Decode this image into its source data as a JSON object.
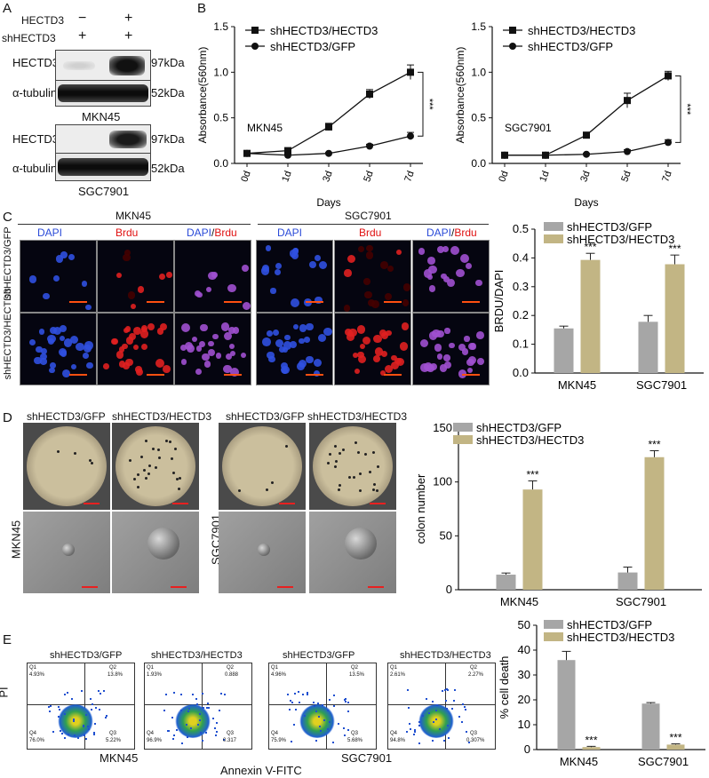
{
  "panelA": {
    "label": "A",
    "rows": [
      "HECTD3",
      "shHECTD3"
    ],
    "signs": [
      [
        "−",
        "+"
      ],
      [
        "+",
        "+"
      ]
    ],
    "blots": [
      {
        "protein": "HECTD3",
        "kda": "97kDa"
      },
      {
        "protein": "α-tubulin",
        "kda": "52kDa"
      },
      {
        "protein": "HECTD3",
        "kda": "97kDa"
      },
      {
        "protein": "α-tubulin",
        "kda": "52kDa"
      }
    ],
    "cell_lines": [
      "MKN45",
      "SGC7901"
    ]
  },
  "panelB": {
    "label": "B"
  },
  "panelC": {
    "label": "C",
    "groups": [
      "MKN45",
      "SGC7901"
    ],
    "channels": [
      "DAPI",
      "Brdu",
      "DAPI",
      "/",
      "Brdu"
    ],
    "rows": [
      "shHECTD3/GFP",
      "shHECTD3/HECTD3"
    ]
  },
  "panelD": {
    "label": "D",
    "cols": [
      "shHECTD3/GFP",
      "shHECTD3/HECTD3",
      "shHECTD3/GFP",
      "shHECTD3/HECTD3"
    ],
    "rows": [
      "MKN45",
      "SGC7901"
    ]
  },
  "panelE": {
    "label": "E",
    "cols": [
      "shHECTD3/GFP",
      "shHECTD3/HECTD3",
      "shHECTD3/GFP",
      "shHECTD3/HECTD3"
    ],
    "quadrants": [
      {
        "q1": "4.93%",
        "q2": "13.8%",
        "q3": "5.22%",
        "q4": "76.0%"
      },
      {
        "q1": "1.93%",
        "q2": "0.888",
        "q3": "0.317",
        "q4": "96.9%"
      },
      {
        "q1": "4.96%",
        "q2": "13.5%",
        "q3": "5.68%",
        "q4": "75.9%"
      },
      {
        "q1": "2.61%",
        "q2": "2.27%",
        "q3": "0.307%",
        "q4": "94.8%"
      }
    ],
    "qnames": [
      "Q1",
      "Q2",
      "Q3",
      "Q4"
    ],
    "ylabel": "PI",
    "xlabel": "Annexin V-FITC",
    "cell_lines": [
      "MKN45",
      "SGC7901"
    ]
  },
  "colors": {
    "gfp": "#a6a6a6",
    "hectd3": "#c2b584",
    "line": "#111111"
  },
  "chart_data": [
    {
      "id": "B1",
      "type": "line",
      "x": [
        "0d",
        "1d",
        "3d",
        "5d",
        "7d"
      ],
      "series": [
        {
          "name": "shHECTD3/HECTD3",
          "values": [
            0.11,
            0.14,
            0.4,
            0.76,
            1.0
          ],
          "err": [
            0.02,
            0.02,
            0.04,
            0.05,
            0.08
          ],
          "marker": "square"
        },
        {
          "name": "shHECTD3/GFP",
          "values": [
            0.11,
            0.09,
            0.11,
            0.19,
            0.3
          ],
          "err": [
            0.01,
            0.01,
            0.01,
            0.02,
            0.04
          ],
          "marker": "circle"
        }
      ],
      "ylabel": "Absorbance(560nm)",
      "xlabel": "Days",
      "ylim": [
        0,
        1.5
      ],
      "yticks": [
        "0.0",
        "0.5",
        "1.0",
        "1.5"
      ],
      "annotation": "MKN45",
      "sig": "***"
    },
    {
      "id": "B2",
      "type": "line",
      "x": [
        "0d",
        "1d",
        "3d",
        "5d",
        "7d"
      ],
      "series": [
        {
          "name": "shHECTD3/HECTD3",
          "values": [
            0.09,
            0.09,
            0.31,
            0.69,
            0.96
          ],
          "err": [
            0.01,
            0.01,
            0.03,
            0.08,
            0.05
          ],
          "marker": "square"
        },
        {
          "name": "shHECTD3/GFP",
          "values": [
            0.09,
            0.09,
            0.1,
            0.13,
            0.23
          ],
          "err": [
            0.01,
            0.01,
            0.01,
            0.02,
            0.03
          ],
          "marker": "circle"
        }
      ],
      "ylabel": "Absorbance(560nm)",
      "xlabel": "Days",
      "ylim": [
        0,
        1.5
      ],
      "yticks": [
        "0.0",
        "0.5",
        "1.0",
        "1.5"
      ],
      "annotation": "SGC7901",
      "sig": "***"
    },
    {
      "id": "C",
      "type": "bar",
      "categories": [
        "MKN45",
        "SGC7901"
      ],
      "series": [
        {
          "name": "shHECTD3/GFP",
          "values": [
            0.155,
            0.178
          ],
          "err": [
            0.008,
            0.022
          ]
        },
        {
          "name": "shHECTD3/HECTD3",
          "values": [
            0.393,
            0.378
          ],
          "err": [
            0.023,
            0.032
          ]
        }
      ],
      "ylabel": "BRDU/DAPI",
      "ylim": [
        0,
        0.5
      ],
      "yticks": [
        "0.0",
        "0.1",
        "0.2",
        "0.3",
        "0.4",
        "0.5"
      ],
      "sig": "***"
    },
    {
      "id": "D",
      "type": "bar",
      "categories": [
        "MKN45",
        "SGC7901"
      ],
      "series": [
        {
          "name": "shHECTD3/GFP",
          "values": [
            14,
            16
          ],
          "err": [
            1.5,
            5
          ]
        },
        {
          "name": "shHECTD3/HECTD3",
          "values": [
            93,
            123
          ],
          "err": [
            8,
            6
          ]
        }
      ],
      "ylabel": "colon number",
      "ylim": [
        0,
        150
      ],
      "yticks": [
        "0",
        "50",
        "100",
        "150"
      ],
      "sig": "***"
    },
    {
      "id": "E",
      "type": "bar",
      "categories": [
        "MKN45",
        "SGC7901"
      ],
      "series": [
        {
          "name": "shHECTD3/GFP",
          "values": [
            36,
            18.5
          ],
          "err": [
            3.5,
            0.4
          ]
        },
        {
          "name": "shHECTD3/HECTD3",
          "values": [
            1.0,
            2.0
          ],
          "err": [
            0.3,
            0.3
          ]
        }
      ],
      "ylabel": "% cell death",
      "ylim": [
        0,
        50
      ],
      "yticks": [
        "0",
        "10",
        "20",
        "30",
        "40",
        "50"
      ],
      "sig": "***"
    }
  ]
}
